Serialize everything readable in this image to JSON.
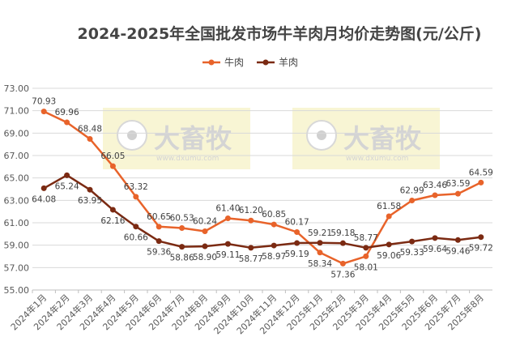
{
  "chart_data": {
    "type": "line",
    "title": "2024-2025年全国批发市场牛羊肉月均价走势图(元/公斤)",
    "categories": [
      "2024年1月",
      "2024年2月",
      "2024年3月",
      "2024年4月",
      "2024年5月",
      "2024年6月",
      "2024年7月",
      "2024年8月",
      "2024年9月",
      "2024年10月",
      "2024年11月",
      "2024年12月",
      "2025年1月",
      "2025年2月",
      "2025年3月",
      "2025年4月",
      "2025年5月",
      "2025年6月",
      "2025年7月",
      "2025年8月"
    ],
    "series": [
      {
        "name": "牛肉",
        "color": "#E8632A",
        "values": [
          70.93,
          69.96,
          68.48,
          66.05,
          63.32,
          60.65,
          60.53,
          60.24,
          61.4,
          61.2,
          60.85,
          60.17,
          58.34,
          57.36,
          58.01,
          61.58,
          62.99,
          63.46,
          63.59,
          64.59
        ],
        "labels": [
          "70.93",
          "69.96",
          "68.48",
          "66.05",
          "63.32",
          "60.65",
          "60.53",
          "60.24",
          "61.40",
          "61.20",
          "60.85",
          "60.17",
          "58.34",
          "57.36",
          "58.01",
          "61.58",
          "62.99",
          "63.46",
          "63.59",
          "64.59"
        ]
      },
      {
        "name": "羊肉",
        "color": "#7B2A12",
        "values": [
          64.08,
          65.24,
          63.95,
          62.16,
          60.66,
          59.36,
          58.86,
          58.9,
          59.11,
          58.77,
          58.97,
          59.19,
          59.21,
          59.18,
          58.77,
          59.06,
          59.33,
          59.64,
          59.46,
          59.72
        ],
        "labels": [
          "64.08",
          "65.24",
          "63.95",
          "62.16",
          "60.66",
          "59.36",
          "58.86",
          "58.90",
          "59.11",
          "58.77",
          "58.97",
          "59.19",
          "59.21",
          "59.18",
          "58.77",
          "59.06",
          "59.33",
          "59.64",
          "59.46",
          "59.72"
        ]
      }
    ],
    "ylim": [
      55,
      73
    ],
    "yticks": [
      "55.00",
      "57.00",
      "59.00",
      "61.00",
      "63.00",
      "65.00",
      "67.00",
      "69.00",
      "71.00",
      "73.00"
    ],
    "grid": true,
    "legend_position": "top-left"
  },
  "watermark": {
    "text": "大畜牧",
    "url": "www.dxumu.com"
  }
}
